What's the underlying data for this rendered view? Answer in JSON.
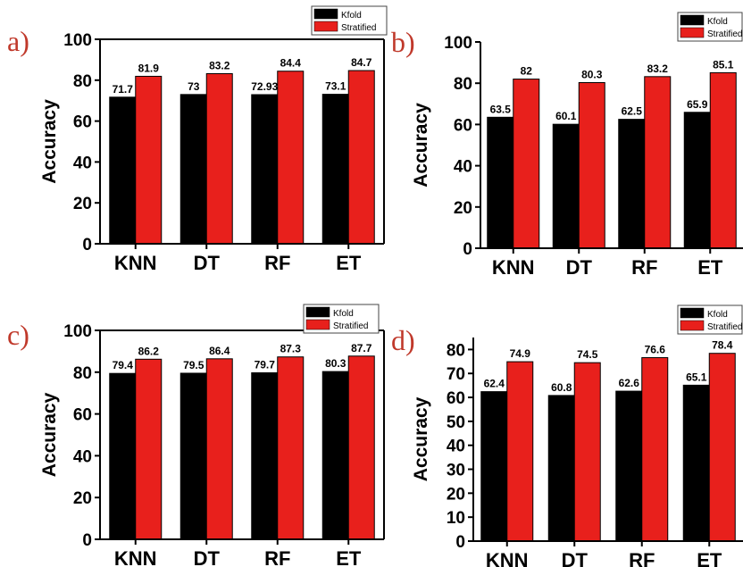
{
  "colors": {
    "kfold": "#000000",
    "stratified": "#e8201c",
    "panel_label": "#c0392b"
  },
  "chart_data": [
    {
      "type": "bar",
      "panel_label": "a)",
      "categories": [
        "KNN",
        "DT",
        "RF",
        "ET"
      ],
      "series": [
        {
          "name": "Kfold",
          "values": [
            71.7,
            73,
            72.93,
            73.1
          ],
          "labels": [
            "71.7",
            "73",
            "72.93",
            "73.1"
          ]
        },
        {
          "name": "Stratified",
          "values": [
            81.9,
            83.2,
            84.4,
            84.7
          ],
          "labels": [
            "81.9",
            "83.2",
            "84.4",
            "84.7"
          ]
        }
      ],
      "ylabel": "Accuracy",
      "ylim": [
        0,
        100
      ],
      "yticks": [
        0,
        20,
        40,
        60,
        80,
        100
      ],
      "grid": false,
      "legend": "top-right"
    },
    {
      "type": "bar",
      "panel_label": "b)",
      "categories": [
        "KNN",
        "DT",
        "RF",
        "ET"
      ],
      "series": [
        {
          "name": "Kfold",
          "values": [
            63.5,
            60.1,
            62.5,
            65.9
          ],
          "labels": [
            "63.5",
            "60.1",
            "62.5",
            "65.9"
          ]
        },
        {
          "name": "Stratified",
          "values": [
            82,
            80.3,
            83.2,
            85.1
          ],
          "labels": [
            "82",
            "80.3",
            "83.2",
            "85.1"
          ]
        }
      ],
      "ylabel": "Accuracy",
      "ylim": [
        0,
        100
      ],
      "yticks": [
        0,
        20,
        40,
        60,
        80,
        100
      ],
      "grid": false,
      "legend": "top-right"
    },
    {
      "type": "bar",
      "panel_label": "c)",
      "categories": [
        "KNN",
        "DT",
        "RF",
        "ET"
      ],
      "series": [
        {
          "name": "Kfold",
          "values": [
            79.4,
            79.5,
            79.7,
            80.3
          ],
          "labels": [
            "79.4",
            "79.5",
            "79.7",
            "80.3"
          ]
        },
        {
          "name": "Stratified",
          "values": [
            86.2,
            86.4,
            87.3,
            87.7
          ],
          "labels": [
            "86.2",
            "86.4",
            "87.3",
            "87.7"
          ]
        }
      ],
      "ylabel": "Accuracy",
      "ylim": [
        0,
        100
      ],
      "yticks": [
        0,
        20,
        40,
        60,
        80,
        100
      ],
      "grid": false,
      "legend": "top-right"
    },
    {
      "type": "bar",
      "panel_label": "d)",
      "categories": [
        "KNN",
        "DT",
        "RF",
        "ET"
      ],
      "series": [
        {
          "name": "Kfold",
          "values": [
            62.4,
            60.8,
            62.6,
            65.1
          ],
          "labels": [
            "62.4",
            "60.8",
            "62.6",
            "65.1"
          ]
        },
        {
          "name": "Stratified",
          "values": [
            74.9,
            74.5,
            76.6,
            78.4
          ],
          "labels": [
            "74.9",
            "74.5",
            "76.6",
            "78.4"
          ]
        }
      ],
      "ylabel": "Accuracy",
      "ylim": [
        0,
        85
      ],
      "yticks": [
        0,
        10,
        20,
        30,
        40,
        50,
        60,
        70,
        80
      ],
      "grid": false,
      "legend": "top-right"
    }
  ]
}
